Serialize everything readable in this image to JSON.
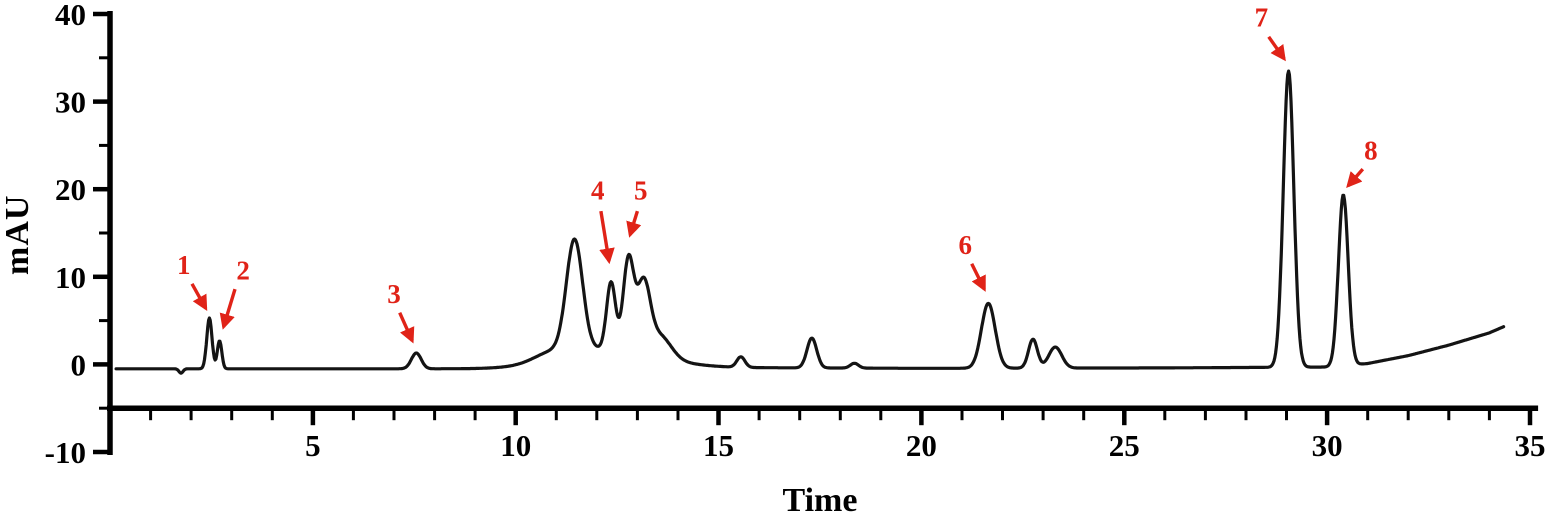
{
  "figure": {
    "background": "#ffffff",
    "axis_color": "#000000",
    "trace_color": "#141414",
    "annotation_color": "#e02318"
  },
  "chart_data": {
    "type": "line",
    "title": "",
    "xlabel": "Time",
    "ylabel": "mAU",
    "xlim": [
      0,
      35.2
    ],
    "ylim": [
      -10,
      40
    ],
    "x_ticks": [
      5,
      10,
      15,
      20,
      25,
      30,
      35
    ],
    "x_minor_step": 1,
    "y_ticks": [
      -10,
      0,
      10,
      20,
      30,
      40
    ],
    "y_minor_step": 5,
    "legend": "none",
    "grid": "off",
    "trace_start": 0.15,
    "trace_end": 34.35,
    "baseline": [
      [
        0,
        -0.5
      ],
      [
        9,
        -0.5
      ],
      [
        14.5,
        -0.35
      ],
      [
        20,
        -0.45
      ],
      [
        26,
        -0.4
      ],
      [
        30,
        -0.3
      ],
      [
        31,
        0.1
      ],
      [
        32,
        1.0
      ],
      [
        33,
        2.2
      ],
      [
        34,
        3.6
      ],
      [
        34.35,
        4.3
      ]
    ],
    "peaks": [
      {
        "center": 1.75,
        "height": -0.5,
        "sigma": 0.05
      },
      {
        "center": 2.45,
        "height": 5.8,
        "sigma": 0.065
      },
      {
        "center": 2.7,
        "height": 3.2,
        "sigma": 0.055
      },
      {
        "center": 7.55,
        "height": 1.8,
        "sigma": 0.12
      },
      {
        "center": 12.3,
        "height": 2.2,
        "sigma": 1.15
      },
      {
        "center": 10.9,
        "height": 1.0,
        "sigma": 0.45
      },
      {
        "center": 11.45,
        "height": 12.6,
        "sigma": 0.2
      },
      {
        "center": 12.35,
        "height": 7.6,
        "sigma": 0.11
      },
      {
        "center": 12.78,
        "height": 10.3,
        "sigma": 0.13
      },
      {
        "center": 13.15,
        "height": 7.6,
        "sigma": 0.16
      },
      {
        "center": 13.55,
        "height": 2.5,
        "sigma": 0.28
      },
      {
        "center": 15.55,
        "height": 1.2,
        "sigma": 0.1
      },
      {
        "center": 17.3,
        "height": 3.4,
        "sigma": 0.12
      },
      {
        "center": 18.35,
        "height": 0.55,
        "sigma": 0.1
      },
      {
        "center": 21.65,
        "height": 7.4,
        "sigma": 0.17
      },
      {
        "center": 22.75,
        "height": 3.3,
        "sigma": 0.11
      },
      {
        "center": 23.3,
        "height": 2.4,
        "sigma": 0.16
      },
      {
        "center": 29.05,
        "height": 33.8,
        "sigma": 0.13
      },
      {
        "center": 30.4,
        "height": 19.5,
        "sigma": 0.12
      }
    ],
    "labeled_peaks": [
      {
        "label": "1",
        "time": 2.45,
        "height_mau": 5
      },
      {
        "label": "2",
        "time": 2.7,
        "height_mau": 3
      },
      {
        "label": "3",
        "time": 7.5,
        "height_mau": 1.8
      },
      {
        "label": "4",
        "time": 12.35,
        "height_mau": 10
      },
      {
        "label": "5",
        "time": 12.8,
        "height_mau": 13
      },
      {
        "label": "6",
        "time": 21.6,
        "height_mau": 7
      },
      {
        "label": "7",
        "time": 29.0,
        "height_mau": 33
      },
      {
        "label": "8",
        "time": 30.4,
        "height_mau": 19
      }
    ],
    "annotations": [
      {
        "label": "1",
        "text": [
          1.82,
          10.3
        ],
        "tail": [
          2.02,
          9.2
        ],
        "head": [
          2.36,
          6.4
        ]
      },
      {
        "label": "2",
        "text": [
          3.28,
          9.7
        ],
        "tail": [
          3.08,
          8.6
        ],
        "head": [
          2.8,
          4.3
        ]
      },
      {
        "label": "3",
        "text": [
          7.0,
          7.0
        ],
        "tail": [
          7.14,
          5.9
        ],
        "head": [
          7.45,
          2.7
        ]
      },
      {
        "label": "4",
        "text": [
          12.02,
          18.8
        ],
        "tail": [
          12.1,
          17.5
        ],
        "head": [
          12.3,
          11.8
        ]
      },
      {
        "label": "5",
        "text": [
          13.08,
          18.8
        ],
        "tail": [
          13.0,
          17.5
        ],
        "head": [
          12.82,
          14.8
        ]
      },
      {
        "label": "6",
        "text": [
          21.08,
          12.6
        ],
        "tail": [
          21.24,
          11.5
        ],
        "head": [
          21.55,
          8.6
        ]
      },
      {
        "label": "7",
        "text": [
          28.38,
          38.6
        ],
        "tail": [
          28.56,
          37.4
        ],
        "head": [
          28.94,
          34.9
        ]
      },
      {
        "label": "8",
        "text": [
          31.08,
          23.4
        ],
        "tail": [
          30.88,
          22.3
        ],
        "head": [
          30.52,
          20.4
        ]
      }
    ]
  }
}
